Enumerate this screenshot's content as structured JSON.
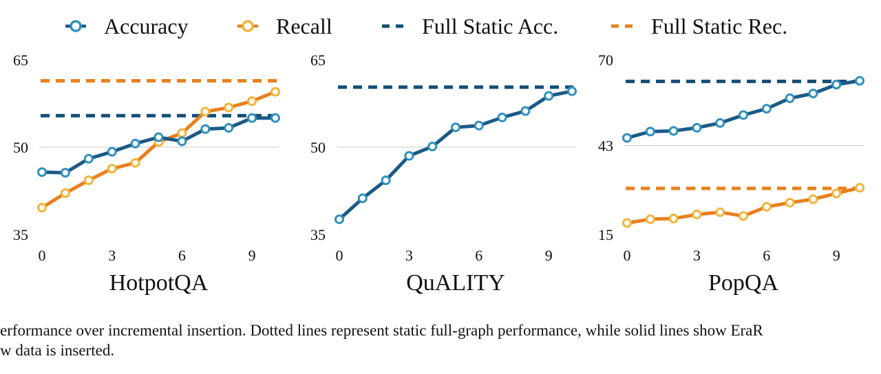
{
  "legend": [
    {
      "label": "Accuracy",
      "style": "solid",
      "color": "#1a5a85",
      "marker": "circle"
    },
    {
      "label": "Recall",
      "style": "solid",
      "color": "#e8801e",
      "marker": "circle"
    },
    {
      "label": "Full Static Acc.",
      "style": "dashed",
      "color": "#114f75"
    },
    {
      "label": "Full Static Rec.",
      "style": "dashed",
      "color": "#e8801e"
    }
  ],
  "colors": {
    "accuracy": "#1a5a85",
    "accuracy_marker": "#2f8fc0",
    "recall": "#e8801e",
    "recall_marker": "#f2b33a",
    "static_acc": "#114f75",
    "static_rec": "#e8801e",
    "grid": "#c8c8c8"
  },
  "chart_data": [
    {
      "type": "line",
      "title": "HotpotQA",
      "x": [
        0,
        1,
        2,
        3,
        4,
        5,
        6,
        7,
        8,
        9,
        10
      ],
      "xticks": [
        0,
        3,
        6,
        9
      ],
      "ylim": [
        35,
        65
      ],
      "yticks": [
        35,
        50,
        65
      ],
      "grid": "horizontal at 50",
      "series": [
        {
          "name": "Accuracy",
          "values": [
            45.7,
            45.6,
            48.0,
            49.2,
            50.6,
            51.7,
            51.0,
            53.1,
            53.3,
            55.0,
            55.0
          ]
        },
        {
          "name": "Recall",
          "values": [
            39.6,
            42.1,
            44.3,
            46.3,
            47.3,
            50.9,
            52.4,
            56.1,
            56.8,
            57.9,
            59.5
          ]
        }
      ],
      "reference_lines": [
        {
          "name": "Full Static Acc.",
          "value": 55.4
        },
        {
          "name": "Full Static Rec.",
          "value": 61.4
        }
      ]
    },
    {
      "type": "line",
      "title": "QuALITY",
      "x": [
        0,
        1,
        2,
        3,
        4,
        5,
        6,
        7,
        8,
        9,
        10
      ],
      "xticks": [
        0,
        3,
        6,
        9
      ],
      "ylim": [
        35,
        65
      ],
      "yticks": [
        35,
        50,
        65
      ],
      "grid": "horizontal at 50",
      "series": [
        {
          "name": "Accuracy",
          "values": [
            37.6,
            41.2,
            44.3,
            48.5,
            50.1,
            53.4,
            53.7,
            55.1,
            56.2,
            58.8,
            59.6
          ]
        }
      ],
      "reference_lines": [
        {
          "name": "Full Static Acc.",
          "value": 60.3
        }
      ]
    },
    {
      "type": "line",
      "title": "PopQA",
      "x": [
        0,
        1,
        2,
        3,
        4,
        5,
        6,
        7,
        8,
        9,
        10
      ],
      "xticks": [
        0,
        3,
        6,
        9
      ],
      "ylim": [
        15,
        70
      ],
      "yticks": [
        15,
        43,
        70
      ],
      "grid": "horizontal at 43",
      "series": [
        {
          "name": "Accuracy",
          "values": [
            45.4,
            47.4,
            47.6,
            48.6,
            50.1,
            52.6,
            54.6,
            57.9,
            59.4,
            62.2,
            63.4
          ]
        },
        {
          "name": "Recall",
          "values": [
            18.6,
            19.8,
            20.0,
            21.3,
            22.0,
            20.8,
            23.7,
            25.0,
            26.1,
            27.9,
            29.7
          ]
        }
      ],
      "reference_lines": [
        {
          "name": "Full Static Acc.",
          "value": 63.2
        },
        {
          "name": "Full Static Rec.",
          "value": 29.5
        }
      ]
    }
  ],
  "caption": {
    "line1": "erformance over incremental insertion. Dotted lines represent static full-graph performance, while solid lines show EraR",
    "line2": "w data is inserted."
  }
}
